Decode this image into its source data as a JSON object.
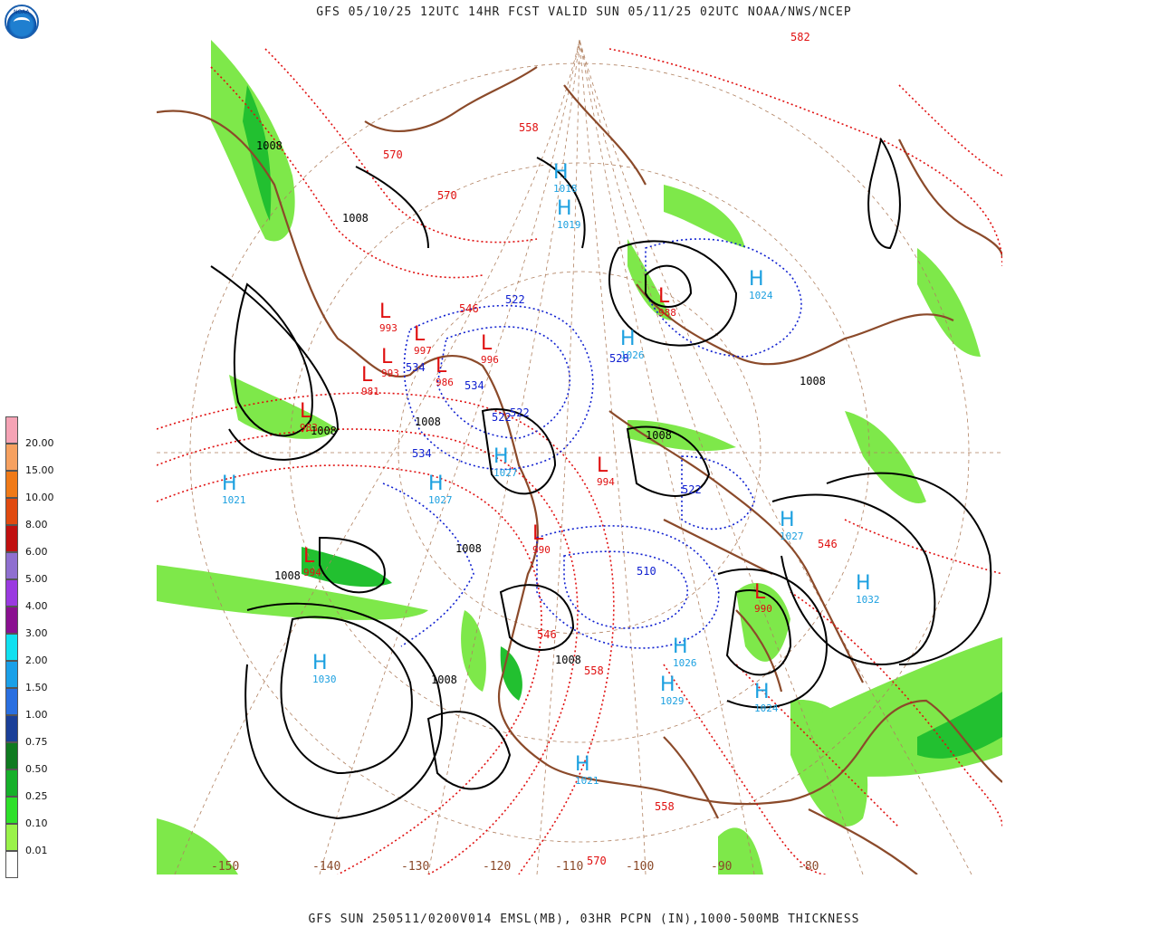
{
  "header": {
    "title": "GFS 05/10/25 12UTC 14HR FCST VALID SUN 05/11/25 02UTC NOAA/NWS/NCEP",
    "logo_text": "NOAA"
  },
  "footer": {
    "caption": "GFS SUN 250511/0200V014 EMSL(MB), 03HR PCPN (IN),1000-500MB THICKNESS"
  },
  "legend": {
    "items": [
      {
        "label": "20.00",
        "color": "#f5a3b5"
      },
      {
        "label": "15.00",
        "color": "#f6a160"
      },
      {
        "label": "10.00",
        "color": "#f07a18"
      },
      {
        "label": "8.00",
        "color": "#e04a10"
      },
      {
        "label": "6.00",
        "color": "#c01010"
      },
      {
        "label": "5.00",
        "color": "#8f6fd0"
      },
      {
        "label": "4.00",
        "color": "#9a3ae0"
      },
      {
        "label": "3.00",
        "color": "#8a1090"
      },
      {
        "label": "2.00",
        "color": "#10e0f0"
      },
      {
        "label": "1.50",
        "color": "#1aa0e8"
      },
      {
        "label": "1.00",
        "color": "#2a6fe0"
      },
      {
        "label": "0.75",
        "color": "#1a3f98"
      },
      {
        "label": "0.50",
        "color": "#0f7a20"
      },
      {
        "label": "0.25",
        "color": "#16b02a"
      },
      {
        "label": "0.10",
        "color": "#2ee02a"
      },
      {
        "label": "0.01",
        "color": "#9af24a"
      },
      {
        "label": "",
        "color": "#ffffff"
      }
    ]
  },
  "colors": {
    "isobar": "#000000",
    "thickness_warm": "#e01010",
    "thickness_cold": "#1020d0",
    "high_label": "#1ca0e0",
    "low_label": "#e01010",
    "coastline": "#8b4a2a",
    "precip_light": "#7ee84a",
    "precip_mid": "#22c030"
  },
  "map": {
    "longitude_labels": [
      "-150",
      "-140",
      "-130",
      "-120",
      "-110",
      "-100",
      "-90",
      "-80"
    ],
    "highs": [
      {
        "value": "1021"
      },
      {
        "value": "1030"
      },
      {
        "value": "1027"
      },
      {
        "value": "1027"
      },
      {
        "value": "1021"
      },
      {
        "value": "1026"
      },
      {
        "value": "1029"
      },
      {
        "value": "1024"
      },
      {
        "value": "1027"
      },
      {
        "value": "1032"
      },
      {
        "value": "1024"
      },
      {
        "value": "1019"
      },
      {
        "value": "1018"
      },
      {
        "value": "1026"
      }
    ],
    "lows": [
      {
        "value": "994"
      },
      {
        "value": "993"
      },
      {
        "value": "997"
      },
      {
        "value": "986"
      },
      {
        "value": "996"
      },
      {
        "value": "983"
      },
      {
        "value": "993"
      },
      {
        "value": "981"
      },
      {
        "value": "988"
      },
      {
        "value": "994"
      },
      {
        "value": "990"
      },
      {
        "value": "990"
      }
    ],
    "isobar_labels": [
      "1008",
      "1008",
      "1008",
      "1008",
      "1008",
      "1008",
      "1008",
      "1008",
      "1008",
      "1008"
    ],
    "thickness_warm_labels": [
      "570",
      "570",
      "558",
      "546",
      "546",
      "558",
      "570",
      "546",
      "558",
      "582"
    ],
    "thickness_cold_labels": [
      "522",
      "534",
      "534",
      "522",
      "522",
      "534",
      "510",
      "522",
      "528"
    ]
  }
}
